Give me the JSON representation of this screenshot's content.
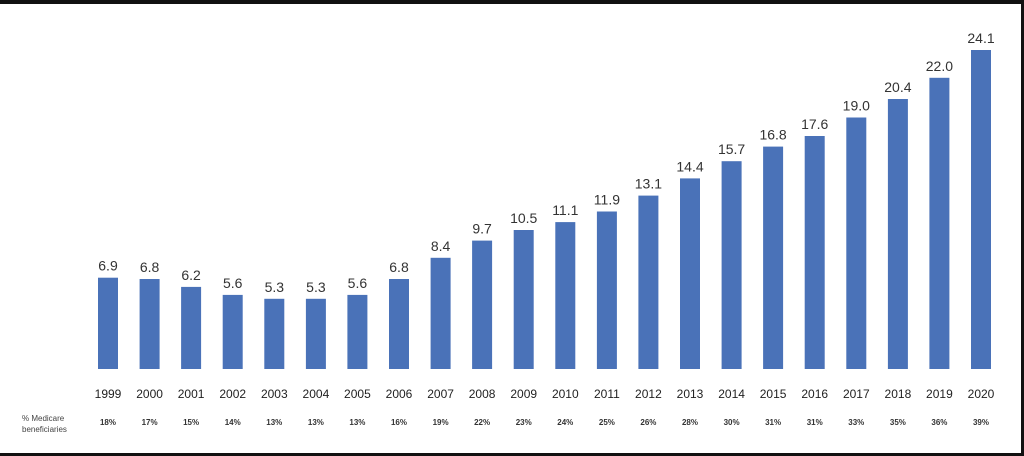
{
  "chart_data": {
    "type": "bar",
    "title": "",
    "xlabel": "",
    "ylabel": "",
    "ylim": [
      0,
      25
    ],
    "grid": false,
    "legend": "none",
    "bar_color": "#4a72b8",
    "categories": [
      "1999",
      "2000",
      "2001",
      "2002",
      "2003",
      "2004",
      "2005",
      "2006",
      "2007",
      "2008",
      "2009",
      "2010",
      "2011",
      "2012",
      "2013",
      "2014",
      "2015",
      "2016",
      "2017",
      "2018",
      "2019",
      "2020"
    ],
    "values": [
      6.9,
      6.8,
      6.2,
      5.6,
      5.3,
      5.3,
      5.6,
      6.8,
      8.4,
      9.7,
      10.5,
      11.1,
      11.9,
      13.1,
      14.4,
      15.7,
      16.8,
      17.6,
      19.0,
      20.4,
      22.0,
      24.1
    ],
    "value_labels": [
      "6.9",
      "6.8",
      "6.2",
      "5.6",
      "5.3",
      "5.3",
      "5.6",
      "6.8",
      "8.4",
      "9.7",
      "10.5",
      "11.1",
      "11.9",
      "13.1",
      "14.4",
      "15.7",
      "16.8",
      "17.6",
      "19.0",
      "20.4",
      "22.0",
      "24.1"
    ],
    "secondary_row": {
      "label": "% Medicare beneficiaries",
      "values": [
        "18%",
        "17%",
        "15%",
        "14%",
        "13%",
        "13%",
        "13%",
        "16%",
        "19%",
        "22%",
        "23%",
        "24%",
        "25%",
        "26%",
        "28%",
        "30%",
        "31%",
        "31%",
        "33%",
        "35%",
        "36%",
        "39%"
      ]
    }
  }
}
